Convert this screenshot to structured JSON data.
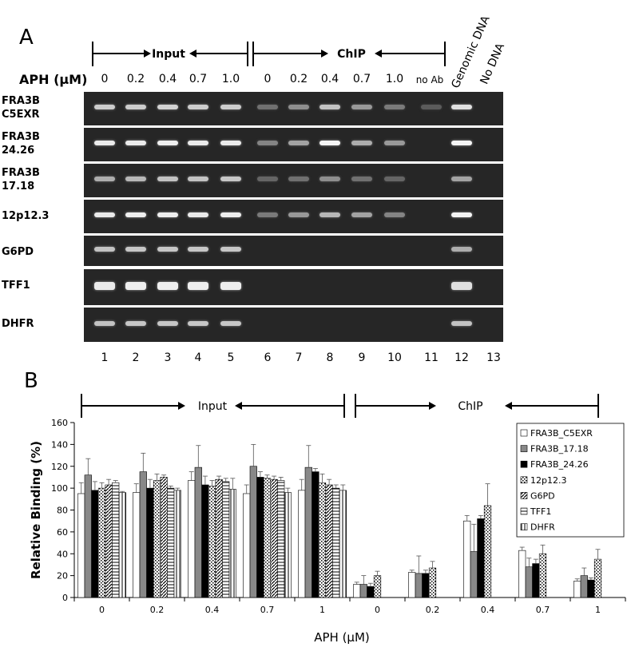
{
  "panel_a": {
    "letter": "A",
    "group_input": "Input",
    "group_chip": "ChIP",
    "aph_label": "APH (µM)",
    "concentrations": [
      "0",
      "0.2",
      "0.4",
      "0.7",
      "1.0",
      "0",
      "0.2",
      "0.4",
      "0.7",
      "1.0",
      "no Ab"
    ],
    "rotated_labels": [
      "Genomic DNA",
      "No DNA"
    ],
    "lane_numbers": [
      "1",
      "2",
      "3",
      "4",
      "5",
      "6",
      "7",
      "8",
      "9",
      "10",
      "11",
      "12",
      "13"
    ],
    "rows": [
      {
        "label": "FRA3B\nC5EXR",
        "band_intensity": [
          0.75,
          0.75,
          0.78,
          0.75,
          0.75,
          0.3,
          0.45,
          0.7,
          0.5,
          0.35,
          0.2,
          0.85,
          0
        ]
      },
      {
        "label": "FRA3B\n24.26",
        "band_intensity": [
          0.9,
          0.9,
          0.92,
          0.9,
          0.9,
          0.4,
          0.55,
          0.95,
          0.6,
          0.5,
          0,
          0.95,
          0
        ]
      },
      {
        "label": "FRA3B\n17.18",
        "band_intensity": [
          0.6,
          0.65,
          0.7,
          0.7,
          0.72,
          0.25,
          0.3,
          0.45,
          0.3,
          0.25,
          0,
          0.55,
          0
        ]
      },
      {
        "label": "12p12.3",
        "band_intensity": [
          0.9,
          0.92,
          0.92,
          0.9,
          0.92,
          0.35,
          0.5,
          0.65,
          0.55,
          0.4,
          0,
          0.95,
          0
        ]
      },
      {
        "label": "G6PD",
        "band_intensity": [
          0.7,
          0.72,
          0.72,
          0.72,
          0.72,
          0,
          0,
          0,
          0,
          0,
          0,
          0.6,
          0
        ]
      },
      {
        "label": "TFF1",
        "band_intensity": [
          0.9,
          0.92,
          0.92,
          0.92,
          0.92,
          0,
          0,
          0,
          0,
          0,
          0,
          0.85,
          0
        ]
      },
      {
        "label": "DHFR",
        "band_intensity": [
          0.7,
          0.72,
          0.72,
          0.72,
          0.72,
          0,
          0,
          0,
          0,
          0,
          0,
          0.7,
          0
        ]
      }
    ]
  },
  "panel_b": {
    "letter": "B",
    "group_input": "Input",
    "group_chip": "ChIP"
  },
  "chart_data": {
    "type": "bar",
    "ylabel": "Relative Binding (%)",
    "xlabel": "APH (µM)",
    "ylim": [
      0,
      160
    ],
    "yticks": [
      0,
      20,
      40,
      60,
      80,
      100,
      120,
      140,
      160
    ],
    "categories": [
      "0",
      "0.2",
      "0.4",
      "0.7",
      "1",
      "0",
      "0.2",
      "0.4",
      "0.7",
      "1"
    ],
    "legend_position": "top-right",
    "series": [
      {
        "name": "FRA3B_C5EXR",
        "pattern": "white",
        "values": [
          95,
          96,
          107,
          95,
          98,
          12,
          23,
          70,
          43,
          15
        ],
        "errors": [
          10,
          8,
          8,
          8,
          10,
          2,
          2,
          5,
          3,
          2
        ]
      },
      {
        "name": "FRA3B_17.18",
        "pattern": "gray",
        "values": [
          112,
          115,
          119,
          120,
          119,
          12,
          22,
          42,
          28,
          20
        ],
        "errors": [
          15,
          17,
          20,
          20,
          20,
          8,
          16,
          25,
          8,
          7
        ]
      },
      {
        "name": "FRA3B_24.26",
        "pattern": "black",
        "values": [
          98,
          100,
          103,
          110,
          115,
          10,
          22,
          72,
          31,
          16
        ],
        "errors": [
          8,
          8,
          8,
          5,
          3,
          3,
          3,
          3,
          4,
          2
        ]
      },
      {
        "name": "12p12.3",
        "pattern": "dots",
        "values": [
          100,
          107,
          102,
          109,
          105,
          20,
          27,
          84,
          40,
          35
        ],
        "errors": [
          5,
          6,
          5,
          3,
          8,
          4,
          6,
          20,
          8,
          9
        ]
      },
      {
        "name": "G6PD",
        "pattern": "diag",
        "values": [
          103,
          110,
          108,
          108,
          103,
          0,
          0,
          0,
          0,
          0
        ],
        "errors": [
          5,
          2,
          3,
          3,
          5,
          0,
          0,
          0,
          0,
          0
        ]
      },
      {
        "name": "TFF1",
        "pattern": "hlines",
        "values": [
          105,
          100,
          106,
          107,
          100,
          0,
          0,
          0,
          0,
          0
        ],
        "errors": [
          2,
          2,
          3,
          3,
          3,
          0,
          0,
          0,
          0,
          0
        ]
      },
      {
        "name": "DHFR",
        "pattern": "vlines",
        "values": [
          96,
          98,
          99,
          96,
          98,
          0,
          0,
          0,
          0,
          0
        ],
        "errors": [
          1,
          2,
          10,
          4,
          5,
          0,
          0,
          0,
          0,
          0
        ]
      }
    ]
  }
}
